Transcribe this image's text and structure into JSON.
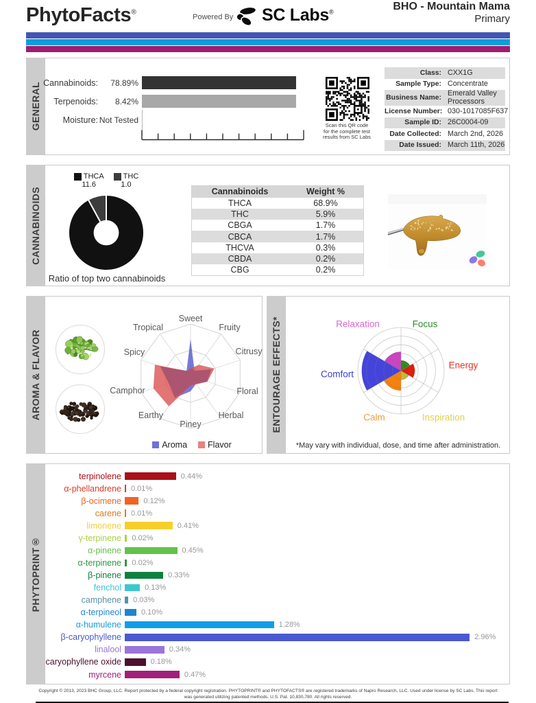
{
  "header": {
    "brand": "PhytoFacts",
    "brand_mark": "®",
    "powered_by": "Powered By",
    "lab_name": "SC Labs",
    "lab_mark": "®",
    "sample_name": "BHO - Mountain Mama",
    "sample_variant": "Primary"
  },
  "accent_stripes": [
    "#4156b5",
    "#0c9edb",
    "#9e1c72"
  ],
  "general": {
    "section_label": "GENERAL",
    "summary_rows": [
      {
        "label": "Cannabinoids:",
        "value": "78.89%"
      },
      {
        "label": "Terpenoids:",
        "value": "8.42%"
      },
      {
        "label": "Moisture:",
        "value": "Not Tested"
      }
    ],
    "qr_caption_lines": [
      "Scan this QR code",
      "for the complete test",
      "results from SC Labs"
    ],
    "info_rows": [
      {
        "label": "Class:",
        "value": "CXX1G"
      },
      {
        "label": "Sample Type:",
        "value": "Concentrate"
      },
      {
        "label": "Business Name:",
        "value": "Emerald Valley Processors"
      },
      {
        "label": "License Number:",
        "value": "030-1017085F637"
      },
      {
        "label": "Sample ID:",
        "value": "26C0004-09"
      },
      {
        "label": "Date Collected:",
        "value": "March 2nd, 2026"
      },
      {
        "label": "Date Issued:",
        "value": "March 11th, 2026"
      }
    ]
  },
  "cannabinoids": {
    "section_label": "CANNABINOIDS"
  },
  "aroma_flavor": {
    "section_label": "AROMA & FLAVOR"
  },
  "entourage": {
    "section_label": "ENTOURAGE EFFECTS*",
    "footnote": "*May vary with individual, dose, and time after administration."
  },
  "phytoprint": {
    "section_label": "PHYTOPRINT®"
  },
  "footer": {
    "line1": "Copyright © 2013, 2023 BHC Group, LLC. Report protected by a federal copyright registration. PHYTOPRINT® and PHYTOFACTS® are registered trademarks of Napro Research, LLC. Used under license by SC Labs. This report",
    "line2": "was generated utilizing patented methods. U.S. Pat. 10,830,780. All rights reserved."
  },
  "chart_data": [
    {
      "id": "general-bars",
      "type": "bar",
      "orientation": "horizontal",
      "categories": [
        "Cannabinoids",
        "Terpenoids",
        "Moisture"
      ],
      "values": [
        78.89,
        8.42,
        null
      ],
      "value_labels": [
        "78.89%",
        "8.42%",
        "Not Tested"
      ],
      "colors": [
        "#333333",
        "#a8a8a8",
        "none"
      ],
      "axis_segments": 10
    },
    {
      "id": "cannabinoid-ratio",
      "type": "pie",
      "title": "Ratio of top two cannabinoids",
      "labels": [
        "THCA",
        "THC"
      ],
      "values": [
        11.6,
        1.0
      ],
      "value_labels": [
        "11.6",
        "1.0"
      ],
      "colors": [
        "#111111",
        "#3d3d3d"
      ],
      "hole": 0.335,
      "legend_position": "top"
    },
    {
      "id": "cannabinoid-table",
      "type": "table",
      "headers": [
        "Cannabinoids",
        "Weight %"
      ],
      "rows": [
        [
          "THCA",
          "68.9%"
        ],
        [
          "THC",
          "5.9%"
        ],
        [
          "CBGA",
          "1.7%"
        ],
        [
          "CBCA",
          "1.7%"
        ],
        [
          "THCVA",
          "0.3%"
        ],
        [
          "CBDA",
          "0.2%"
        ],
        [
          "CBG",
          "0.2%"
        ]
      ]
    },
    {
      "id": "aroma-flavor-radar",
      "type": "radar",
      "categories": [
        "Sweet",
        "Fruity",
        "Citrusy",
        "Floral",
        "Herbal",
        "Piney",
        "Earthy",
        "Camphor",
        "Spicy",
        "Tropical"
      ],
      "series": [
        {
          "name": "Aroma",
          "color": "#3e42c7",
          "fill_opacity": 0.7,
          "legend_color": "#6d71d8",
          "values": [
            0.71,
            0.13,
            0.42,
            0.33,
            0.18,
            0.29,
            0.51,
            0.44,
            0.61,
            0.13
          ]
        },
        {
          "name": "Flavor",
          "color": "#d84f4d",
          "fill_opacity": 0.78,
          "legend_color": "#e8827c",
          "values": [
            0.15,
            0.27,
            0.48,
            0.34,
            0.19,
            0.18,
            0.71,
            0.75,
            0.72,
            0.12
          ]
        }
      ],
      "range": [
        0,
        1
      ],
      "grid_levels": [
        0.5,
        1
      ]
    },
    {
      "id": "entourage-polar",
      "type": "polar",
      "max": 5,
      "rings": 5,
      "wedges": [
        {
          "name": "Focus",
          "value": 1.2,
          "color": "#2f8b1d",
          "label_color": "#2e8b2e"
        },
        {
          "name": "Relaxation",
          "value": 2.2,
          "color": "#cc44c0",
          "label_color": "#d966d1"
        },
        {
          "name": "Comfort",
          "value": 4.55,
          "color": "#4444dd",
          "label_color": "#3c3ccf"
        },
        {
          "name": "Calm",
          "value": 2.3,
          "color": "#f6820d",
          "label_color": "#f59b3e"
        },
        {
          "name": "Inspiration",
          "value": 1.05,
          "color": "#c2bb3a",
          "label_color": "#ddd34b"
        },
        {
          "name": "Energy",
          "value": 1.6,
          "color": "#dd1d0d",
          "label_color": "#e2392b"
        }
      ]
    },
    {
      "id": "phytoprint-terpenes",
      "type": "bar",
      "orientation": "horizontal",
      "unit": "%",
      "rows": [
        {
          "name": "terpinolene",
          "value": 0.44,
          "label": "0.44%",
          "color": "#a81117"
        },
        {
          "name": "α-phellandrene",
          "value": 0.01,
          "label": "0.01%",
          "color": "#dc3a28"
        },
        {
          "name": "β-ocimene",
          "value": 0.12,
          "label": "0.12%",
          "color": "#f06423"
        },
        {
          "name": "carene",
          "value": 0.01,
          "label": "0.01%",
          "color": "#df7b16"
        },
        {
          "name": "limonene",
          "value": 0.41,
          "label": "0.41%",
          "color": "#f7cf2b"
        },
        {
          "name": "γ-terpinene",
          "value": 0.02,
          "label": "0.02%",
          "color": "#abd146"
        },
        {
          "name": "α-pinene",
          "value": 0.45,
          "label": "0.45%",
          "color": "#64c24b"
        },
        {
          "name": "α-terpinene",
          "value": 0.02,
          "label": "0.02%",
          "color": "#2b9a3e"
        },
        {
          "name": "β-pinene",
          "value": 0.33,
          "label": "0.33%",
          "color": "#0e813e"
        },
        {
          "name": "fenchol",
          "value": 0.13,
          "label": "0.13%",
          "color": "#3cc7cf"
        },
        {
          "name": "camphene",
          "value": 0.03,
          "label": "0.03%",
          "color": "#5592ab"
        },
        {
          "name": "α-terpineol",
          "value": 0.1,
          "label": "0.10%",
          "color": "#1f86cd"
        },
        {
          "name": "α-humulene",
          "value": 1.28,
          "label": "1.28%",
          "color": "#129de8"
        },
        {
          "name": "β-caryophyllene",
          "value": 2.96,
          "label": "2.96%",
          "color": "#4959cf"
        },
        {
          "name": "linalool",
          "value": 0.34,
          "label": "0.34%",
          "color": "#9b74dc"
        },
        {
          "name": "caryophyllene oxide",
          "value": 0.18,
          "label": "0.18%",
          "color": "#4e0f2d"
        },
        {
          "name": "myrcene",
          "value": 0.47,
          "label": "0.47%",
          "color": "#a31f79"
        }
      ]
    }
  ]
}
